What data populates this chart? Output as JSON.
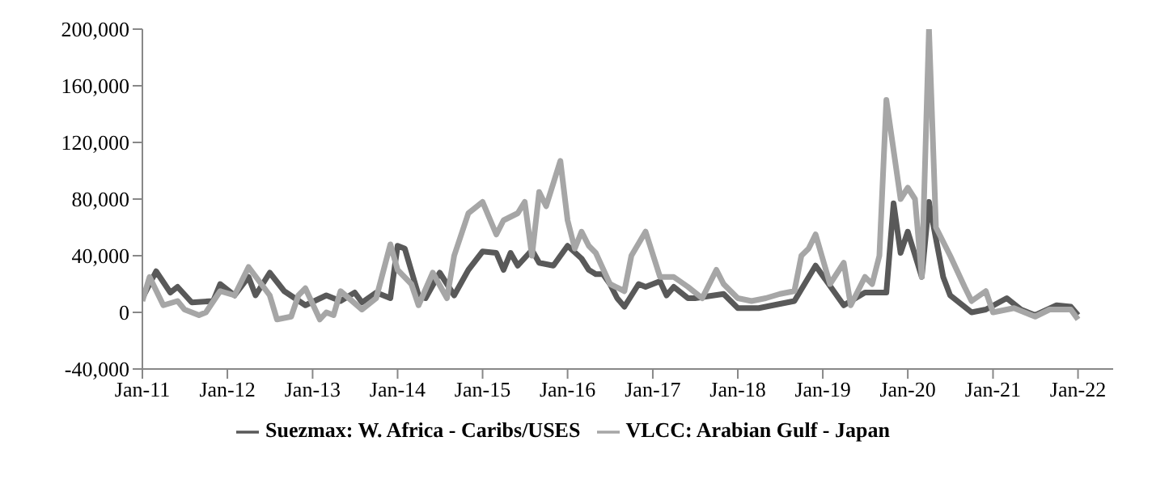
{
  "chart_data": {
    "type": "line",
    "xlim": [
      "2011-01",
      "2022-06"
    ],
    "xticks": [
      {
        "value": "2011-01",
        "label": "Jan-11"
      },
      {
        "value": "2012-01",
        "label": "Jan-12"
      },
      {
        "value": "2013-01",
        "label": "Jan-13"
      },
      {
        "value": "2014-01",
        "label": "Jan-14"
      },
      {
        "value": "2015-01",
        "label": "Jan-15"
      },
      {
        "value": "2016-01",
        "label": "Jan-16"
      },
      {
        "value": "2017-01",
        "label": "Jan-17"
      },
      {
        "value": "2018-01",
        "label": "Jan-18"
      },
      {
        "value": "2019-01",
        "label": "Jan-19"
      },
      {
        "value": "2020-01",
        "label": "Jan-20"
      },
      {
        "value": "2021-01",
        "label": "Jan-21"
      },
      {
        "value": "2022-01",
        "label": "Jan-22"
      }
    ],
    "ylim": [
      -40000,
      200000
    ],
    "yticks": [
      {
        "value": -40000,
        "label": "-40,000"
      },
      {
        "value": 0,
        "label": "0"
      },
      {
        "value": 40000,
        "label": "40,000"
      },
      {
        "value": 80000,
        "label": "80,000"
      },
      {
        "value": 120000,
        "label": "120,000"
      },
      {
        "value": 160000,
        "label": "160,000"
      },
      {
        "value": 200000,
        "label": "200,000"
      }
    ],
    "grid": false,
    "legend": "bottom",
    "marker": "none",
    "line_style": "solid",
    "series": [
      {
        "name": "Suezmax: W. Africa - Caribs/USES",
        "color": "#595959",
        "x": [
          "2011-01",
          "2011-03",
          "2011-05",
          "2011-06",
          "2011-08",
          "2011-11",
          "2011-12",
          "2012-02",
          "2012-04",
          "2012-05",
          "2012-07",
          "2012-09",
          "2012-12",
          "2013-03",
          "2013-05",
          "2013-07",
          "2013-08",
          "2013-10",
          "2013-12",
          "2014-01",
          "2014-02",
          "2014-04",
          "2014-05",
          "2014-07",
          "2014-09",
          "2014-11",
          "2015-01",
          "2015-03",
          "2015-04",
          "2015-05",
          "2015-06",
          "2015-08",
          "2015-09",
          "2015-11",
          "2016-01",
          "2016-03",
          "2016-04",
          "2016-05",
          "2016-06",
          "2016-07",
          "2016-08",
          "2016-09",
          "2016-11",
          "2016-12",
          "2017-02",
          "2017-03",
          "2017-04",
          "2017-06",
          "2017-07",
          "2017-11",
          "2018-01",
          "2018-04",
          "2018-06",
          "2018-09",
          "2018-12",
          "2019-04",
          "2019-07",
          "2019-10",
          "2019-11",
          "2019-12",
          "2020-01",
          "2020-03",
          "2020-04",
          "2020-06",
          "2020-07",
          "2020-10",
          "2020-12",
          "2021-03",
          "2021-05",
          "2021-07",
          "2021-10",
          "2021-12",
          "2022-01"
        ],
        "values": [
          10000,
          29000,
          14000,
          18000,
          7000,
          8000,
          20000,
          12000,
          25000,
          12000,
          28000,
          15000,
          5000,
          12000,
          8000,
          14000,
          7000,
          14000,
          10000,
          47000,
          45000,
          12000,
          10000,
          28000,
          12000,
          30000,
          43000,
          42000,
          30000,
          42000,
          33000,
          44000,
          35000,
          33000,
          47000,
          38000,
          30000,
          27000,
          27000,
          20000,
          10000,
          4000,
          20000,
          18000,
          22000,
          12000,
          18000,
          10000,
          10000,
          13000,
          3000,
          3000,
          5000,
          8000,
          33000,
          5000,
          14000,
          14000,
          77000,
          42000,
          57000,
          25000,
          78000,
          25000,
          12000,
          0,
          2000,
          10000,
          2000,
          -2000,
          5000,
          4000,
          -2000
        ]
      },
      {
        "name": "VLCC: Arabian Gulf - Japan",
        "color": "#a6a6a6",
        "x": [
          "2011-01",
          "2011-02",
          "2011-04",
          "2011-06",
          "2011-07",
          "2011-09",
          "2011-10",
          "2011-12",
          "2012-02",
          "2012-04",
          "2012-07",
          "2012-08",
          "2012-10",
          "2012-11",
          "2012-12",
          "2013-02",
          "2013-03",
          "2013-04",
          "2013-05",
          "2013-08",
          "2013-10",
          "2013-12",
          "2014-01",
          "2014-03",
          "2014-04",
          "2014-06",
          "2014-08",
          "2014-09",
          "2014-11",
          "2015-01",
          "2015-03",
          "2015-04",
          "2015-06",
          "2015-07",
          "2015-08",
          "2015-09",
          "2015-10",
          "2015-12",
          "2016-01",
          "2016-02",
          "2016-03",
          "2016-04",
          "2016-05",
          "2016-07",
          "2016-09",
          "2016-10",
          "2016-12",
          "2017-02",
          "2017-04",
          "2017-06",
          "2017-08",
          "2017-10",
          "2017-11",
          "2018-01",
          "2018-03",
          "2018-05",
          "2018-07",
          "2018-09",
          "2018-10",
          "2018-11",
          "2018-12",
          "2019-02",
          "2019-04",
          "2019-05",
          "2019-07",
          "2019-08",
          "2019-09",
          "2019-10",
          "2019-12",
          "2020-01",
          "2020-02",
          "2020-03",
          "2020-04",
          "2020-05",
          "2020-07",
          "2020-09",
          "2020-10",
          "2020-12",
          "2021-01",
          "2021-04",
          "2021-07",
          "2021-09",
          "2021-12",
          "2022-01"
        ],
        "values": [
          8000,
          25000,
          5000,
          8000,
          2000,
          -2000,
          0,
          15000,
          12000,
          32000,
          12000,
          -5000,
          -3000,
          12000,
          17000,
          -5000,
          0,
          -2000,
          15000,
          2000,
          10000,
          48000,
          30000,
          20000,
          5000,
          28000,
          10000,
          40000,
          70000,
          78000,
          55000,
          65000,
          70000,
          78000,
          40000,
          85000,
          75000,
          107000,
          65000,
          45000,
          57000,
          47000,
          42000,
          20000,
          15000,
          40000,
          57000,
          25000,
          25000,
          18000,
          10000,
          30000,
          20000,
          10000,
          8000,
          10000,
          13000,
          15000,
          40000,
          45000,
          55000,
          20000,
          35000,
          5000,
          25000,
          20000,
          40000,
          150000,
          80000,
          88000,
          80000,
          25000,
          200000,
          60000,
          40000,
          18000,
          8000,
          15000,
          0,
          3000,
          -3000,
          2000,
          2000,
          -5000
        ]
      }
    ]
  }
}
